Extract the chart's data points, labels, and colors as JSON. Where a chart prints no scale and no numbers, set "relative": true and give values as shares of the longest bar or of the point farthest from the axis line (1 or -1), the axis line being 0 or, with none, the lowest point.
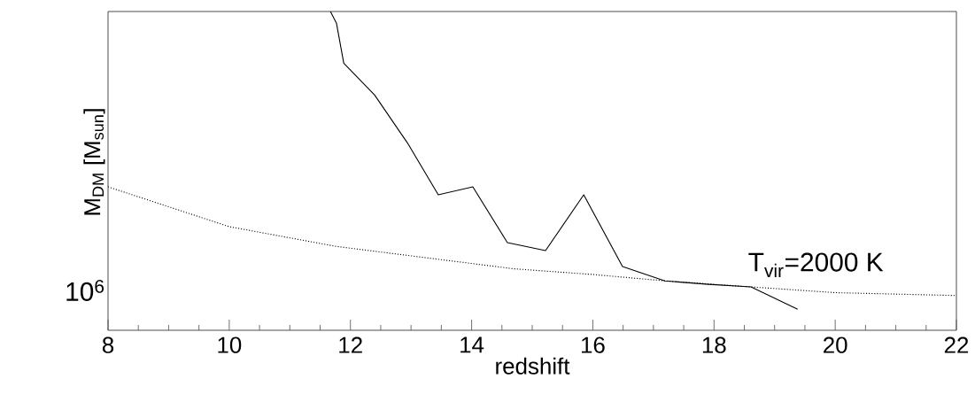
{
  "chart_data": {
    "type": "line",
    "xlabel": "redshift",
    "ylabel": "M$_{DM}$ [M$_{sun}$]",
    "relative": true,
    "annotations": [
      "10$^{6}$"
    ],
    "xlim": [
      8,
      22
    ],
    "xticks": [
      8,
      {
        "value": 8.5,
        "label": null
      },
      {
        "value": 9,
        "label": null
      },
      {
        "value": 9.5,
        "label": null
      },
      10,
      {
        "value": 10.5,
        "label": null
      },
      {
        "value": 11,
        "label": null
      },
      {
        "value": 11.5,
        "label": null
      },
      12,
      {
        "value": 12.5,
        "label": null
      },
      {
        "value": 13,
        "label": null
      },
      {
        "value": 13.5,
        "label": null
      },
      14,
      {
        "value": 14.5,
        "label": null
      },
      {
        "value": 15,
        "label": null
      },
      {
        "value": 15.5,
        "label": null
      },
      16,
      {
        "value": 16.5,
        "label": null
      },
      {
        "value": 17,
        "label": null
      },
      {
        "value": 17.5,
        "label": null
      },
      18,
      {
        "value": 18.5,
        "label": null
      },
      {
        "value": 19,
        "label": null
      },
      {
        "value": 19.5,
        "label": null
      },
      20,
      {
        "value": 20.5,
        "label": null
      },
      {
        "value": 21,
        "label": null
      },
      {
        "value": 21.5,
        "label": null
      },
      22
    ],
    "series": [
      {
        "color": "#000000",
        "line_style": "solid",
        "x": [
          11.67,
          11.77,
          11.89,
          12.4,
          12.94,
          13.45,
          14.02,
          14.59,
          15.22,
          15.85,
          16.49,
          17.19,
          17.91,
          18.61,
          19.38
        ],
        "values": [
          1,
          0.963,
          0.838,
          0.738,
          0.588,
          0.425,
          0.45,
          0.275,
          0.25,
          0.425,
          0.2,
          0.155,
          0.144,
          0.136,
          0.066
        ]
      },
      {
        "name": "T$_{vir}$=2000 K",
        "color": "#000000",
        "line_style": "dotted",
        "x": [
          8,
          10,
          11.77,
          14.69,
          16,
          17.19,
          18.61,
          20,
          22
        ],
        "values": [
          0.45,
          0.325,
          0.263,
          0.193,
          0.175,
          0.155,
          0.136,
          0.118,
          0.109
        ]
      }
    ]
  }
}
